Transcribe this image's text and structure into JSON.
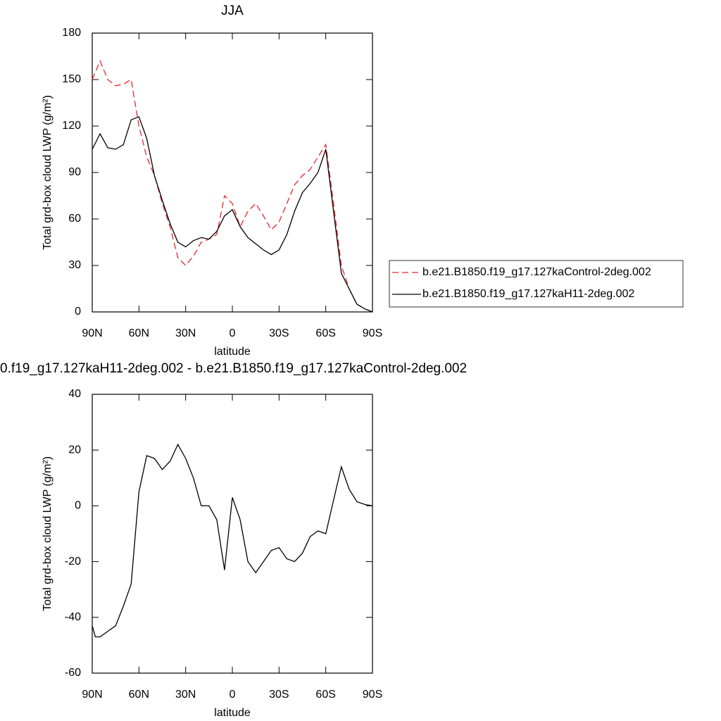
{
  "chart_data": [
    {
      "type": "line",
      "title": "JJA",
      "xlabel": "latitude",
      "ylabel": "Total grd-box cloud LWP (g/m²)",
      "x": [
        90,
        85,
        80,
        75,
        70,
        65,
        60,
        55,
        50,
        45,
        40,
        35,
        30,
        25,
        20,
        15,
        10,
        5,
        0,
        -5,
        -10,
        -15,
        -20,
        -25,
        -30,
        -35,
        -40,
        -45,
        -50,
        -55,
        -60,
        -65,
        -70,
        -75,
        -80,
        -85,
        -90
      ],
      "series": [
        {
          "name": "b.e21.B1850.f19_g17.127kaControl-2deg.002",
          "color": "#e8262b",
          "style": "dashed",
          "values": [
            150,
            162,
            150,
            146,
            147,
            150,
            120,
            100,
            88,
            70,
            55,
            35,
            30,
            36,
            45,
            47,
            50,
            75,
            70,
            55,
            65,
            70,
            62,
            53,
            58,
            70,
            82,
            88,
            92,
            100,
            108,
            70,
            30,
            15,
            5,
            2,
            0
          ]
        },
        {
          "name": "b.e21.B1850.f19_g17.127kaH11-2deg.002",
          "color": "#000000",
          "style": "solid",
          "values": [
            105,
            115,
            106,
            105,
            108,
            124,
            126,
            112,
            88,
            72,
            57,
            45,
            42,
            46,
            48,
            47,
            52,
            62,
            66,
            55,
            48,
            44,
            40,
            37,
            40,
            50,
            65,
            77,
            83,
            90,
            105,
            65,
            25,
            15,
            5,
            2,
            0
          ]
        }
      ],
      "xlim": [
        90,
        -90
      ],
      "xticks": [
        {
          "value": 90,
          "label": "90N"
        },
        {
          "value": 60,
          "label": "60N"
        },
        {
          "value": 30,
          "label": "30N"
        },
        0,
        {
          "value": -30,
          "label": "30S"
        },
        {
          "value": -60,
          "label": "60S"
        },
        {
          "value": -90,
          "label": "90S"
        }
      ],
      "ylim": [
        0,
        180
      ],
      "yticks": [
        0,
        30,
        60,
        90,
        120,
        150,
        180
      ],
      "legend": "right"
    },
    {
      "type": "line",
      "title": "0.f19_g17.127kaH11-2deg.002 - b.e21.B1850.f19_g17.127kaControl-2deg.002",
      "xlabel": "latitude",
      "ylabel": "Total grd-box cloud LWP (g/m²)",
      "x": [
        90,
        88,
        85,
        80,
        75,
        70,
        65,
        60,
        55,
        50,
        45,
        40,
        35,
        30,
        25,
        20,
        15,
        10,
        5,
        0,
        -5,
        -10,
        -15,
        -20,
        -25,
        -30,
        -35,
        -40,
        -45,
        -50,
        -55,
        -60,
        -65,
        -70,
        -75,
        -80,
        -85,
        -90
      ],
      "series": [
        {
          "color": "#000000",
          "style": "solid",
          "values": [
            -43,
            -47,
            -47,
            -45,
            -43,
            -36,
            -28,
            5,
            18,
            17,
            13,
            16,
            22,
            17,
            10,
            0,
            0,
            -5,
            -23,
            3,
            -5,
            -20,
            -24,
            -20,
            -16,
            -15,
            -19,
            -20,
            -17,
            -11,
            -9,
            -10,
            2,
            14,
            6,
            1.5,
            0.5,
            0
          ]
        }
      ],
      "xlim": [
        90,
        -90
      ],
      "xticks": [
        {
          "value": 90,
          "label": "90N"
        },
        {
          "value": 60,
          "label": "60N"
        },
        {
          "value": 30,
          "label": "30N"
        },
        0,
        {
          "value": -30,
          "label": "30S"
        },
        {
          "value": -60,
          "label": "60S"
        },
        {
          "value": -90,
          "label": "90S"
        }
      ],
      "ylim": [
        -60,
        40
      ],
      "yticks": [
        -60,
        -40,
        -20,
        0,
        20,
        40
      ]
    }
  ]
}
